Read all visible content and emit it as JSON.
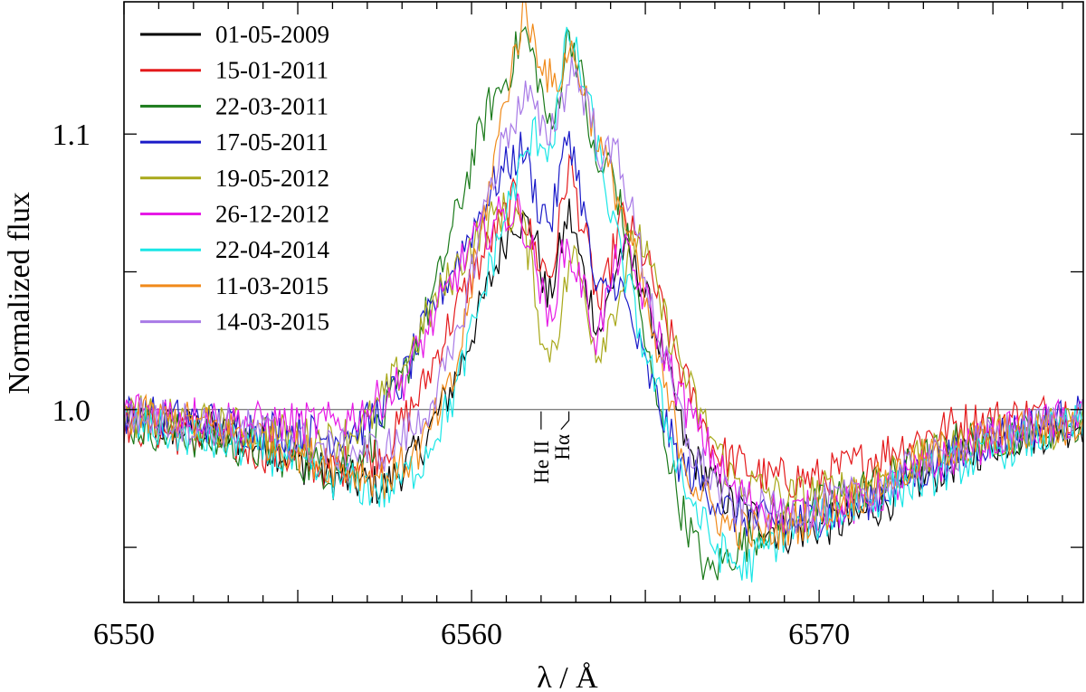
{
  "chart_data": {
    "type": "line",
    "xlabel": "λ / Å",
    "ylabel": "Normalized flux",
    "xlim": [
      6550,
      6577.6
    ],
    "ylim": [
      0.93,
      1.148
    ],
    "xticks_major": [
      6550,
      6560,
      6570
    ],
    "xtick_labels": [
      "6550",
      "6560",
      "6570"
    ],
    "yticks_major": [
      1.0,
      1.1
    ],
    "ytick_labels": [
      "1.0",
      "1.1"
    ],
    "reference_line": 1.0,
    "legend_position": "top-left",
    "annotations": [
      {
        "text": "He II",
        "x": 6562.0
      },
      {
        "text": "Hα",
        "x": 6562.8
      }
    ],
    "series": [
      {
        "name": "01-05-2009",
        "color": "#000000",
        "points": [
          [
            6550,
            0.995
          ],
          [
            6552,
            0.993
          ],
          [
            6554,
            0.988
          ],
          [
            6556,
            0.975
          ],
          [
            6557.5,
            0.972
          ],
          [
            6558.5,
            0.985
          ],
          [
            6559.5,
            1.01
          ],
          [
            6560.5,
            1.045
          ],
          [
            6561.2,
            1.07
          ],
          [
            6561.8,
            1.065
          ],
          [
            6562.2,
            1.038
          ],
          [
            6562.8,
            1.072
          ],
          [
            6563.3,
            1.045
          ],
          [
            6563.7,
            1.028
          ],
          [
            6564.3,
            1.058
          ],
          [
            6564.8,
            1.05
          ],
          [
            6565.5,
            1.02
          ],
          [
            6566.2,
            0.985
          ],
          [
            6567.5,
            0.965
          ],
          [
            6569,
            0.955
          ],
          [
            6571,
            0.96
          ],
          [
            6573,
            0.975
          ],
          [
            6575,
            0.988
          ],
          [
            6577.6,
            0.995
          ]
        ]
      },
      {
        "name": "15-01-2011",
        "color": "#e41a1c",
        "points": [
          [
            6550,
            0.995
          ],
          [
            6552,
            0.99
          ],
          [
            6554,
            0.985
          ],
          [
            6556,
            0.978
          ],
          [
            6557.5,
            0.985
          ],
          [
            6558.5,
            1.005
          ],
          [
            6559.5,
            1.035
          ],
          [
            6560.5,
            1.06
          ],
          [
            6561.3,
            1.078
          ],
          [
            6561.9,
            1.055
          ],
          [
            6562.3,
            1.048
          ],
          [
            6562.8,
            1.09
          ],
          [
            6563.3,
            1.06
          ],
          [
            6563.7,
            1.035
          ],
          [
            6564.3,
            1.07
          ],
          [
            6565,
            1.055
          ],
          [
            6566,
            1.015
          ],
          [
            6567,
            0.985
          ],
          [
            6568.5,
            0.975
          ],
          [
            6570,
            0.975
          ],
          [
            6572,
            0.985
          ],
          [
            6574,
            0.995
          ],
          [
            6577.6,
            1.0
          ]
        ]
      },
      {
        "name": "22-03-2011",
        "color": "#1a7a1a",
        "points": [
          [
            6550,
            0.995
          ],
          [
            6552,
            0.99
          ],
          [
            6554,
            0.985
          ],
          [
            6556,
            0.978
          ],
          [
            6557,
            0.985
          ],
          [
            6558,
            1.01
          ],
          [
            6559,
            1.045
          ],
          [
            6560,
            1.09
          ],
          [
            6560.5,
            1.11
          ],
          [
            6561,
            1.12
          ],
          [
            6561.5,
            1.138
          ],
          [
            6561.9,
            1.122
          ],
          [
            6562.3,
            1.098
          ],
          [
            6562.8,
            1.138
          ],
          [
            6563.1,
            1.125
          ],
          [
            6563.6,
            1.085
          ],
          [
            6564,
            1.09
          ],
          [
            6564.5,
            1.06
          ],
          [
            6565.2,
            1.01
          ],
          [
            6566,
            0.965
          ],
          [
            6566.8,
            0.94
          ],
          [
            6567.5,
            0.948
          ],
          [
            6568.5,
            0.958
          ],
          [
            6570,
            0.965
          ],
          [
            6572,
            0.975
          ],
          [
            6574,
            0.988
          ],
          [
            6577.6,
            0.995
          ]
        ]
      },
      {
        "name": "17-05-2011",
        "color": "#1a1ac8",
        "points": [
          [
            6550,
            0.998
          ],
          [
            6552,
            0.996
          ],
          [
            6554,
            0.993
          ],
          [
            6556,
            0.99
          ],
          [
            6557,
            0.995
          ],
          [
            6558,
            1.01
          ],
          [
            6559,
            1.04
          ],
          [
            6560,
            1.065
          ],
          [
            6560.8,
            1.085
          ],
          [
            6561.5,
            1.095
          ],
          [
            6561.9,
            1.075
          ],
          [
            6562.3,
            1.068
          ],
          [
            6562.8,
            1.102
          ],
          [
            6563.2,
            1.075
          ],
          [
            6563.6,
            1.04
          ],
          [
            6564.2,
            1.048
          ],
          [
            6565,
            1.015
          ],
          [
            6566,
            0.98
          ],
          [
            6567.5,
            0.962
          ],
          [
            6569,
            0.958
          ],
          [
            6571,
            0.965
          ],
          [
            6573,
            0.978
          ],
          [
            6575,
            0.99
          ],
          [
            6577.6,
            0.998
          ]
        ]
      },
      {
        "name": "19-05-2012",
        "color": "#a8a81a",
        "points": [
          [
            6550,
            0.998
          ],
          [
            6552,
            0.995
          ],
          [
            6554,
            0.992
          ],
          [
            6556,
            0.988
          ],
          [
            6557,
            0.995
          ],
          [
            6558,
            1.015
          ],
          [
            6559,
            1.04
          ],
          [
            6560,
            1.06
          ],
          [
            6560.8,
            1.072
          ],
          [
            6561.4,
            1.07
          ],
          [
            6561.8,
            1.048
          ],
          [
            6562.1,
            1.018
          ],
          [
            6562.5,
            1.03
          ],
          [
            6562.9,
            1.058
          ],
          [
            6563.3,
            1.04
          ],
          [
            6563.6,
            1.02
          ],
          [
            6564.2,
            1.04
          ],
          [
            6564.8,
            1.065
          ],
          [
            6565.5,
            1.035
          ],
          [
            6566.5,
            1.0
          ],
          [
            6567.5,
            0.975
          ],
          [
            6569,
            0.968
          ],
          [
            6571,
            0.972
          ],
          [
            6573,
            0.982
          ],
          [
            6575,
            0.99
          ],
          [
            6577.6,
            0.995
          ]
        ]
      },
      {
        "name": "26-12-2012",
        "color": "#e61ae6",
        "points": [
          [
            6550,
            1.0
          ],
          [
            6552,
            0.998
          ],
          [
            6554,
            0.995
          ],
          [
            6556,
            0.995
          ],
          [
            6557,
            1.0
          ],
          [
            6558,
            1.01
          ],
          [
            6559,
            1.035
          ],
          [
            6560,
            1.06
          ],
          [
            6560.8,
            1.07
          ],
          [
            6561.4,
            1.072
          ],
          [
            6561.9,
            1.05
          ],
          [
            6562.2,
            1.03
          ],
          [
            6562.7,
            1.06
          ],
          [
            6563.2,
            1.045
          ],
          [
            6563.6,
            1.025
          ],
          [
            6564.3,
            1.06
          ],
          [
            6565,
            1.04
          ],
          [
            6566,
            1.005
          ],
          [
            6567.5,
            0.97
          ],
          [
            6569,
            0.962
          ],
          [
            6571,
            0.965
          ],
          [
            6573,
            0.978
          ],
          [
            6575,
            0.99
          ],
          [
            6577.6,
            0.998
          ]
        ]
      },
      {
        "name": "22-04-2014",
        "color": "#1ae6e6",
        "points": [
          [
            6550,
            0.995
          ],
          [
            6552,
            0.99
          ],
          [
            6554,
            0.985
          ],
          [
            6556,
            0.975
          ],
          [
            6557.5,
            0.97
          ],
          [
            6558.5,
            0.98
          ],
          [
            6559.5,
            1.005
          ],
          [
            6560.5,
            1.05
          ],
          [
            6561.2,
            1.08
          ],
          [
            6561.8,
            1.1
          ],
          [
            6562.3,
            1.095
          ],
          [
            6562.8,
            1.138
          ],
          [
            6563.3,
            1.115
          ],
          [
            6563.7,
            1.09
          ],
          [
            6564.2,
            1.06
          ],
          [
            6564.8,
            1.03
          ],
          [
            6565.5,
            1.0
          ],
          [
            6566.2,
            0.97
          ],
          [
            6567,
            0.95
          ],
          [
            6567.8,
            0.942
          ],
          [
            6569,
            0.955
          ],
          [
            6571,
            0.965
          ],
          [
            6573,
            0.975
          ],
          [
            6575,
            0.985
          ],
          [
            6577.6,
            0.995
          ]
        ]
      },
      {
        "name": "11-03-2015",
        "color": "#f08a1a",
        "points": [
          [
            6550,
            0.998
          ],
          [
            6552,
            0.995
          ],
          [
            6554,
            0.99
          ],
          [
            6556,
            0.98
          ],
          [
            6557.5,
            0.975
          ],
          [
            6558.5,
            0.985
          ],
          [
            6559.5,
            1.01
          ],
          [
            6560.5,
            1.08
          ],
          [
            6561,
            1.115
          ],
          [
            6561.5,
            1.145
          ],
          [
            6562,
            1.128
          ],
          [
            6562.4,
            1.115
          ],
          [
            6562.8,
            1.132
          ],
          [
            6563.2,
            1.118
          ],
          [
            6563.7,
            1.095
          ],
          [
            6564.2,
            1.078
          ],
          [
            6564.8,
            1.05
          ],
          [
            6565.5,
            1.01
          ],
          [
            6566.3,
            0.975
          ],
          [
            6567.3,
            0.958
          ],
          [
            6568.5,
            0.955
          ],
          [
            6570,
            0.962
          ],
          [
            6572,
            0.975
          ],
          [
            6574,
            0.988
          ],
          [
            6577.6,
            0.995
          ]
        ]
      },
      {
        "name": "14-03-2015",
        "color": "#a87ae6",
        "points": [
          [
            6550,
            0.998
          ],
          [
            6552,
            0.995
          ],
          [
            6554,
            0.992
          ],
          [
            6556,
            0.985
          ],
          [
            6557.5,
            0.985
          ],
          [
            6558.5,
            0.995
          ],
          [
            6559.5,
            1.02
          ],
          [
            6560.5,
            1.08
          ],
          [
            6561,
            1.1
          ],
          [
            6561.6,
            1.115
          ],
          [
            6562.1,
            1.098
          ],
          [
            6562.5,
            1.108
          ],
          [
            6562.9,
            1.125
          ],
          [
            6563.3,
            1.112
          ],
          [
            6563.8,
            1.09
          ],
          [
            6564.2,
            1.095
          ],
          [
            6564.8,
            1.06
          ],
          [
            6565.5,
            1.02
          ],
          [
            6566.3,
            0.985
          ],
          [
            6567.5,
            0.965
          ],
          [
            6569,
            0.962
          ],
          [
            6571,
            0.968
          ],
          [
            6573,
            0.98
          ],
          [
            6575,
            0.99
          ],
          [
            6577.6,
            0.998
          ]
        ]
      }
    ]
  }
}
